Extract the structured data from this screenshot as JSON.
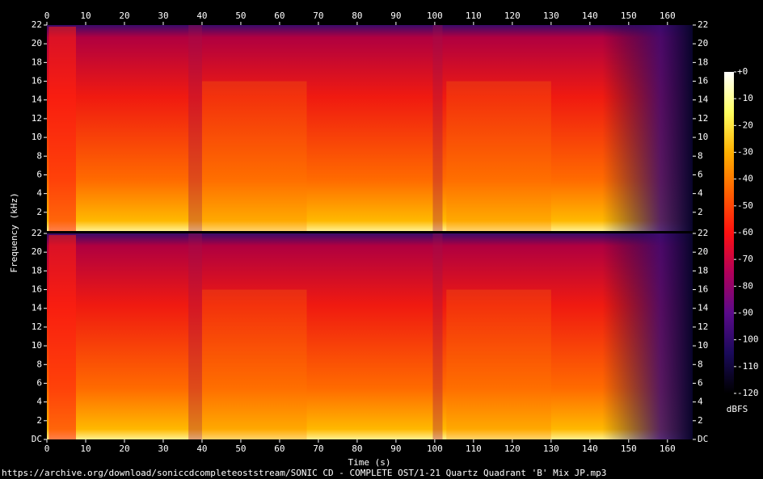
{
  "chart_data": {
    "type": "spectrogram",
    "x_label": "Time (s)",
    "y_label": "Frequency (kHz)",
    "xlim": [
      0,
      166.5
    ],
    "xticks": [
      0,
      10,
      20,
      30,
      40,
      50,
      60,
      70,
      80,
      90,
      100,
      110,
      120,
      130,
      140,
      150,
      160
    ],
    "panels": [
      {
        "ylim": [
          0,
          22
        ],
        "yticks": [
          2,
          4,
          6,
          8,
          10,
          12,
          14,
          16,
          18,
          20,
          22
        ]
      },
      {
        "ylim": [
          0,
          22
        ],
        "yticks": [
          {
            "value": 0,
            "label": "DC"
          },
          2,
          4,
          6,
          8,
          10,
          12,
          14,
          16,
          18,
          20,
          22
        ]
      }
    ],
    "colorbar": {
      "label": "dBFS",
      "lim": [
        -120,
        0
      ],
      "ticks": [
        {
          "value": 0,
          "label": "+0"
        },
        -10,
        -20,
        -30,
        -40,
        -50,
        -60,
        -70,
        -80,
        -90,
        -100,
        -110,
        -120
      ],
      "colors": [
        "#000000",
        "#1a0a5a",
        "#5a0a8a",
        "#b0005a",
        "#ff1010",
        "#ff6000",
        "#ffb000",
        "#ffff60",
        "#ffffff"
      ]
    },
    "source": "https://archive.org/download/soniccdcompleteoststream/SONIC CD - COMPLETE OST/1-21 Quartz Quadrant 'B' Mix JP.mp3"
  }
}
